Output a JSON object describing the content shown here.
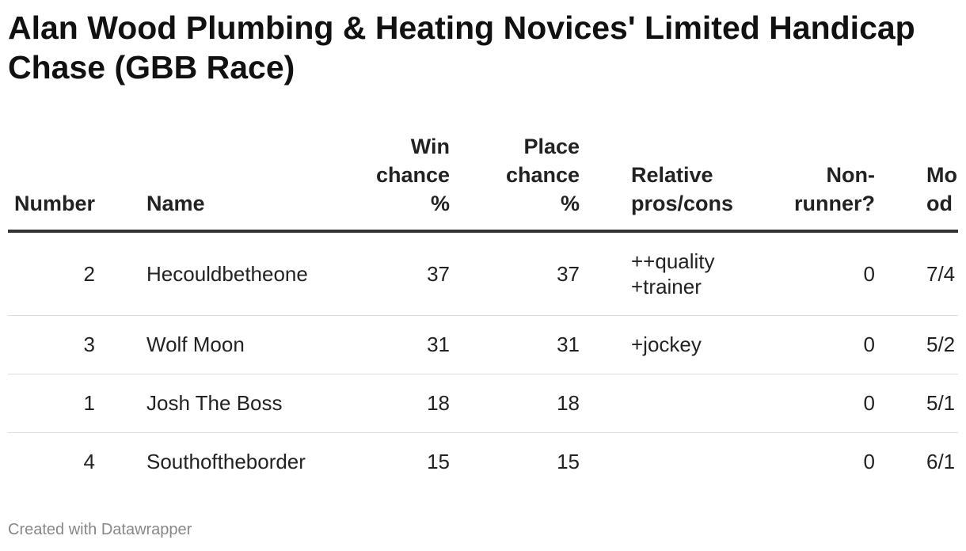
{
  "header": {
    "title": "Alan Wood Plumbing & Heating Novices' Limited Handicap Chase (GBB Race)"
  },
  "table": {
    "columns": [
      [
        "Number"
      ],
      [
        "Name"
      ],
      [
        "Win",
        "chance",
        "%"
      ],
      [
        "Place",
        "chance",
        "%"
      ],
      [
        "Relative",
        "pros/cons"
      ],
      [
        "Non-",
        "runner?"
      ],
      [
        "Mo",
        "od"
      ]
    ],
    "rows": [
      [
        2,
        "Hecouldbetheone",
        37,
        37,
        [
          "++quality",
          "+trainer"
        ],
        0,
        "7/4"
      ],
      [
        3,
        "Wolf Moon",
        31,
        31,
        [
          "+jockey"
        ],
        0,
        "5/2"
      ],
      [
        1,
        "Josh The Boss",
        18,
        18,
        null,
        0,
        "5/1"
      ],
      [
        4,
        "Southoftheborder",
        15,
        15,
        null,
        0,
        "6/1"
      ]
    ]
  },
  "footer": {
    "credit": "Created with Datawrapper"
  }
}
